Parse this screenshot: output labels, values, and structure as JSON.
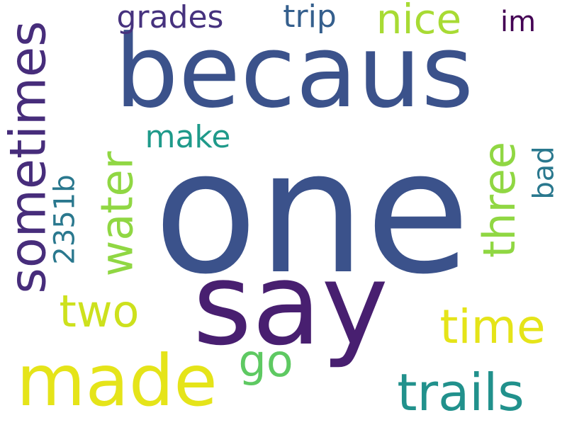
{
  "words": [
    {
      "text": "one",
      "color": "#3b528b",
      "rotation": "horizontal"
    },
    {
      "text": "becaus",
      "color": "#3b528b",
      "rotation": "horizontal"
    },
    {
      "text": "say",
      "color": "#481f70",
      "rotation": "horizontal"
    },
    {
      "text": "made",
      "color": "#e5e419",
      "rotation": "horizontal"
    },
    {
      "text": "sometimes",
      "color": "#472d7b",
      "rotation": "vertical"
    },
    {
      "text": "trails",
      "color": "#21918c",
      "rotation": "horizontal"
    },
    {
      "text": "time",
      "color": "#e5e419",
      "rotation": "horizontal"
    },
    {
      "text": "water",
      "color": "#90d743",
      "rotation": "vertical"
    },
    {
      "text": "three",
      "color": "#90d743",
      "rotation": "vertical"
    },
    {
      "text": "two",
      "color": "#cde11d",
      "rotation": "horizontal"
    },
    {
      "text": "go",
      "color": "#5ec962",
      "rotation": "horizontal"
    },
    {
      "text": "nice",
      "color": "#a8db34",
      "rotation": "horizontal"
    },
    {
      "text": "grades",
      "color": "#46327e",
      "rotation": "horizontal"
    },
    {
      "text": "trip",
      "color": "#355f8d",
      "rotation": "horizontal"
    },
    {
      "text": "make",
      "color": "#1f9a8a",
      "rotation": "horizontal"
    },
    {
      "text": "2351b",
      "color": "#2a788e",
      "rotation": "vertical"
    },
    {
      "text": "bad",
      "color": "#2a788e",
      "rotation": "vertical"
    },
    {
      "text": "im",
      "color": "#440154",
      "rotation": "horizontal"
    }
  ]
}
